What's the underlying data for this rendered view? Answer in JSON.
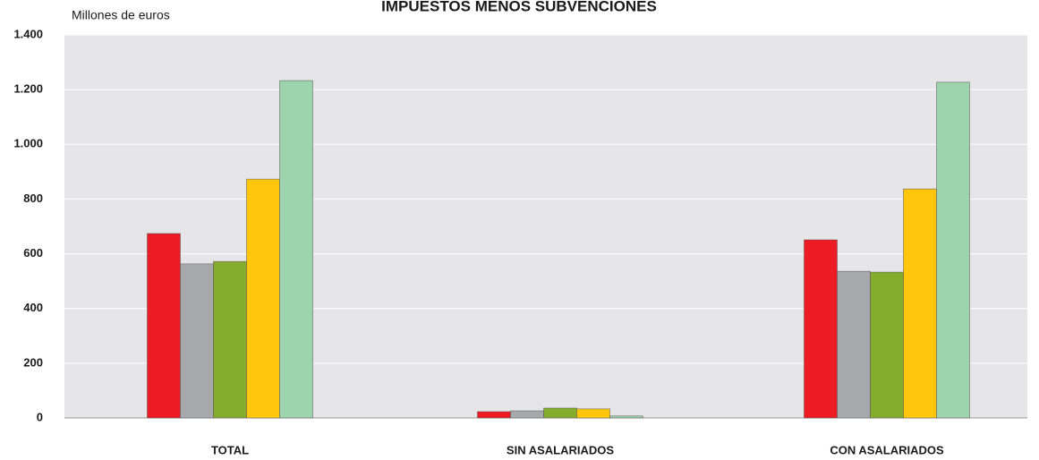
{
  "chart_data": {
    "type": "bar",
    "title": "IMPUESTOS MENOS SUBVENCIONES",
    "y_label": "Millones de euros",
    "categories": [
      "TOTAL",
      "SIN ASALARIADOS",
      "CON ASALARIADOS"
    ],
    "series": [
      {
        "color": "#ed1c24",
        "values": [
          674,
          23,
          651
        ]
      },
      {
        "color": "#a7a9ac",
        "values": [
          563,
          26,
          536
        ]
      },
      {
        "color": "#86ac2e",
        "values": [
          572,
          36,
          533
        ]
      },
      {
        "color": "#ffc60b",
        "values": [
          873,
          33,
          837
        ]
      },
      {
        "color": "#9dd3ad",
        "values": [
          1233,
          7,
          1227
        ]
      }
    ],
    "ylim": [
      0,
      1400
    ],
    "yticks": [
      0,
      200,
      400,
      600,
      800,
      {
        "value": 1000,
        "label": "1.000"
      },
      {
        "value": 1200,
        "label": "1.200"
      },
      {
        "value": 1400,
        "label": "1.400"
      }
    ],
    "grid": true
  }
}
